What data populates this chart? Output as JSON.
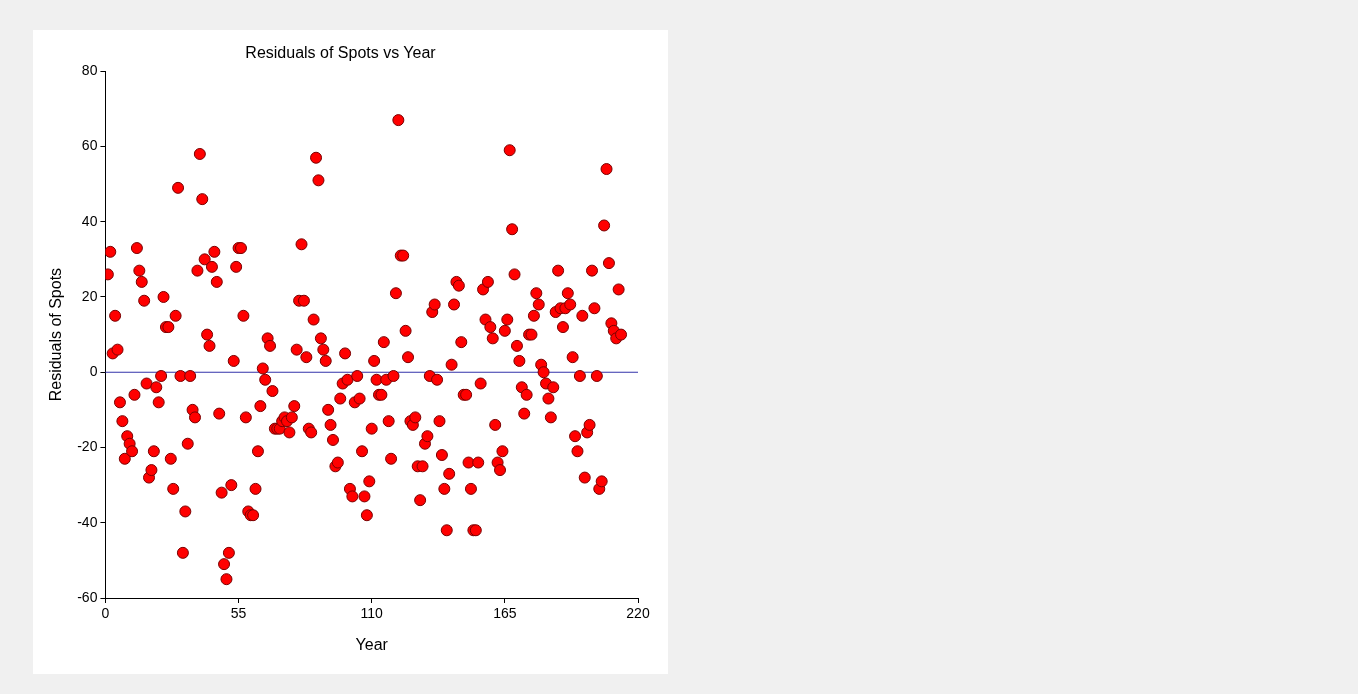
{
  "chart_data": {
    "type": "scatter",
    "title": "Residuals of Spots vs Year",
    "xlabel": "Year",
    "ylabel": "Residuals of Spots",
    "xlim": [
      0,
      220
    ],
    "xticks": [
      0,
      55,
      110,
      165,
      220
    ],
    "ylim": [
      -60,
      80
    ],
    "yticks": [
      -60,
      -40,
      -20,
      0,
      20,
      40,
      60,
      80
    ],
    "grid": false,
    "legend": false,
    "marker": "circle",
    "ref_lines": [
      {
        "axis": "y",
        "value": 0,
        "color": "#3333aa"
      }
    ],
    "series": [
      {
        "color": "#ff0000",
        "x": [
          1,
          2,
          3,
          4,
          5,
          6,
          7,
          8,
          9,
          10,
          11,
          12,
          13,
          14,
          15,
          16,
          17,
          18,
          19,
          20,
          21,
          22,
          23,
          24,
          25,
          26,
          27,
          28,
          29,
          30,
          31,
          32,
          33,
          34,
          35,
          36,
          37,
          38,
          39,
          40,
          41,
          42,
          43,
          44,
          45,
          46,
          47,
          48,
          49,
          50,
          51,
          52,
          53,
          54,
          55,
          56,
          57,
          58,
          59,
          60,
          61,
          62,
          63,
          64,
          65,
          66,
          67,
          68,
          69,
          70,
          71,
          72,
          73,
          74,
          75,
          76,
          77,
          78,
          79,
          80,
          81,
          82,
          83,
          84,
          85,
          86,
          87,
          88,
          89,
          90,
          91,
          92,
          93,
          94,
          95,
          96,
          97,
          98,
          99,
          100,
          101,
          102,
          103,
          104,
          105,
          106,
          107,
          108,
          109,
          110,
          111,
          112,
          113,
          114,
          115,
          116,
          117,
          118,
          119,
          120,
          121,
          122,
          123,
          124,
          125,
          126,
          127,
          128,
          129,
          130,
          131,
          132,
          133,
          134,
          135,
          136,
          137,
          138,
          139,
          140,
          141,
          142,
          143,
          144,
          145,
          146,
          147,
          148,
          149,
          150,
          151,
          152,
          153,
          154,
          155,
          156,
          157,
          158,
          159,
          160,
          161,
          162,
          163,
          164,
          165,
          166,
          167,
          168,
          169,
          170,
          171,
          172,
          173,
          174,
          175,
          176,
          177,
          178,
          179,
          180,
          181,
          182,
          183,
          184,
          185,
          186,
          187,
          188,
          189,
          190,
          191,
          192,
          193,
          194,
          195,
          196,
          197,
          198,
          199,
          200,
          201,
          202,
          203,
          204,
          205,
          206,
          207,
          208,
          209,
          210,
          211,
          212,
          213
        ],
        "values": [
          26,
          32,
          5,
          15,
          6,
          -8,
          -13,
          -23,
          -17,
          -19,
          -21,
          -6,
          33,
          27,
          24,
          19,
          -3,
          -28,
          -26,
          -21,
          -4,
          -8,
          -1,
          20,
          12,
          12,
          -23,
          -31,
          15,
          49,
          -1,
          -48,
          -37,
          -19,
          -1,
          -10,
          -12,
          27,
          58,
          46,
          30,
          10,
          7,
          28,
          32,
          24,
          -11,
          -32,
          -51,
          -55,
          -48,
          -30,
          3,
          28,
          33,
          33,
          15,
          -12,
          -37,
          -38,
          -38,
          -31,
          -21,
          -9,
          1,
          -2,
          9,
          7,
          -5,
          -15,
          -15,
          -15,
          -13,
          -12,
          -13,
          -16,
          -12,
          -9,
          6,
          19,
          34,
          19,
          4,
          -15,
          -16,
          14,
          57,
          51,
          9,
          6,
          3,
          -10,
          -14,
          -18,
          -25,
          -24,
          -7,
          -3,
          5,
          -2,
          -31,
          -33,
          -8,
          -1,
          -7,
          -21,
          -33,
          -38,
          -29,
          -15,
          3,
          -2,
          -6,
          -6,
          8,
          -2,
          -13,
          -23,
          -1,
          21,
          67,
          31,
          31,
          11,
          4,
          -13,
          -14,
          -12,
          -25,
          -34,
          -25,
          -19,
          -17,
          -1,
          16,
          18,
          -2,
          -13,
          -22,
          -31,
          -42,
          -27,
          2,
          18,
          24,
          23,
          8,
          -6,
          -6,
          -24,
          -31,
          -42,
          -42,
          -24,
          -3,
          22,
          14,
          24,
          12,
          9,
          -14,
          -24,
          -26,
          -21,
          11,
          14,
          59,
          38,
          26,
          7,
          3,
          -4,
          -11,
          -6,
          10,
          10,
          15,
          21,
          18,
          2,
          0,
          -3,
          -7,
          -12,
          -4,
          16,
          27,
          17,
          12,
          17,
          21,
          18,
          4,
          -17,
          -21,
          -1,
          15,
          -28,
          -16,
          -14,
          27,
          17,
          -1,
          -31,
          -29,
          39,
          54,
          29,
          13,
          11,
          9,
          22,
          10
        ]
      }
    ]
  }
}
